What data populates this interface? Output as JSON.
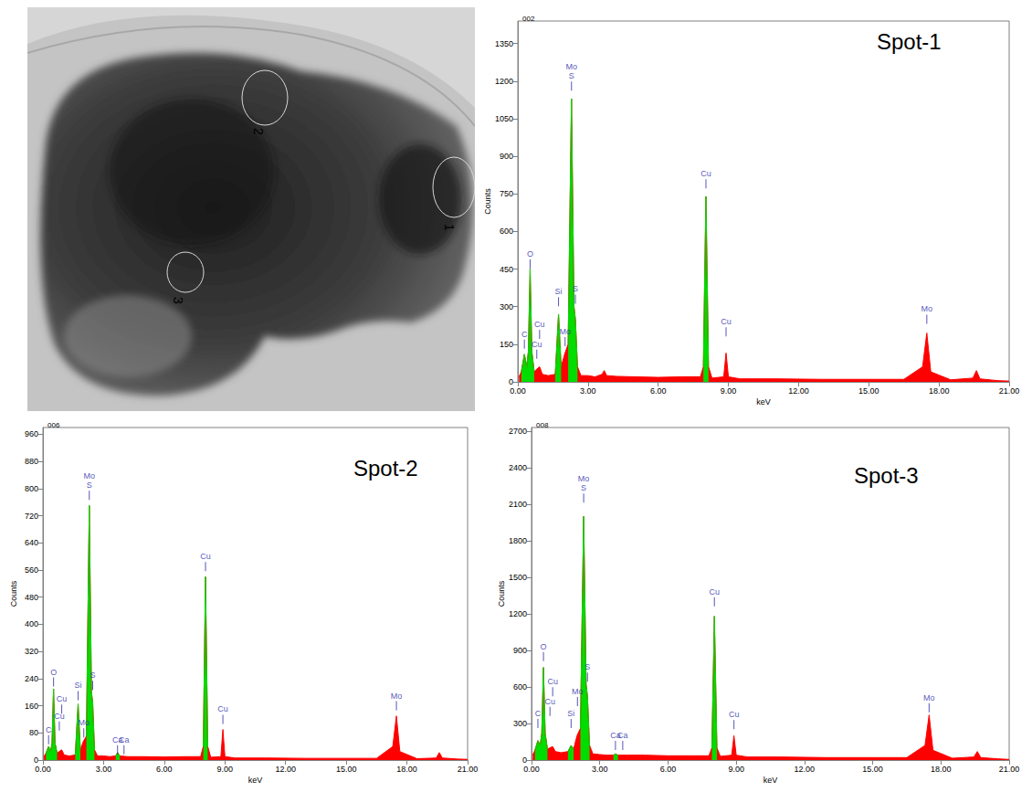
{
  "micrograph": {
    "spot_labels": [
      "1",
      "2",
      "3"
    ]
  },
  "chart_data": [
    {
      "type": "area",
      "title": "Spot-1",
      "subtitle": "002",
      "xlabel": "keV",
      "ylabel": "Counts",
      "grid": false,
      "x": [
        0.05,
        0.15,
        0.28,
        0.38,
        0.45,
        0.525,
        0.6,
        0.7,
        0.8,
        0.93,
        1.05,
        1.3,
        1.6,
        1.74,
        1.85,
        2.0,
        2.15,
        2.293,
        2.4,
        2.46,
        2.55,
        2.7,
        3.0,
        3.3,
        3.6,
        3.69,
        3.8,
        4.2,
        5.0,
        6.0,
        7.0,
        7.8,
        7.93,
        8.04,
        8.15,
        8.3,
        8.8,
        8.9,
        9.0,
        9.5,
        11.0,
        13.0,
        15.0,
        16.5,
        17.3,
        17.48,
        17.65,
        18.5,
        19.45,
        19.6,
        19.75,
        20.5,
        21.0
      ],
      "series": [
        {
          "color": "#ff0000",
          "values": [
            20,
            40,
            110,
            60,
            120,
            450,
            120,
            40,
            50,
            60,
            30,
            25,
            30,
            270,
            60,
            110,
            150,
            1130,
            300,
            250,
            60,
            25,
            25,
            20,
            30,
            45,
            25,
            22,
            20,
            18,
            20,
            20,
            60,
            740,
            60,
            15,
            20,
            115,
            20,
            12,
            12,
            10,
            10,
            10,
            60,
            195,
            40,
            8,
            15,
            45,
            12,
            5,
            3
          ]
        },
        {
          "color": "#00dd00",
          "values": [
            null,
            40,
            110,
            60,
            120,
            450,
            120,
            40,
            null,
            null,
            null,
            null,
            30,
            270,
            60,
            null,
            150,
            1130,
            300,
            250,
            60,
            null,
            null,
            null,
            null,
            null,
            null,
            null,
            null,
            null,
            null,
            null,
            60,
            740,
            60,
            null,
            null,
            null,
            null,
            null,
            null,
            null,
            null,
            null,
            null,
            null,
            null,
            null,
            null,
            null,
            null,
            null,
            null
          ]
        }
      ],
      "xlim": [
        0,
        21
      ],
      "xticks": [
        {
          "value": 0,
          "label": "0.00"
        },
        {
          "value": 3,
          "label": "3.00"
        },
        {
          "value": 6,
          "label": "6.00"
        },
        {
          "value": 9,
          "label": "9.00"
        },
        {
          "value": 12,
          "label": "12.00"
        },
        {
          "value": 15,
          "label": "15.00"
        },
        {
          "value": 18,
          "label": "18.00"
        },
        {
          "value": 21,
          "label": "21.00"
        }
      ],
      "ylim": [
        0,
        1440
      ],
      "yticks": [
        0,
        150,
        300,
        450,
        600,
        750,
        900,
        1050,
        1200,
        1350
      ],
      "annotations": [
        {
          "text": [
            "C"
          ],
          "x": 0.28,
          "y": 150
        },
        {
          "text": [
            "O"
          ],
          "x": 0.525,
          "y": 470
        },
        {
          "text": [
            "Cu"
          ],
          "x": 0.93,
          "y": 190
        },
        {
          "text": [
            "Cu"
          ],
          "x": 0.81,
          "y": 110
        },
        {
          "text": [
            "Si"
          ],
          "x": 1.74,
          "y": 320
        },
        {
          "text": [
            "Mo"
          ],
          "x": 2.02,
          "y": 160
        },
        {
          "text": [
            "Mo",
            "S"
          ],
          "x": 2.293,
          "y": 1180
        },
        {
          "text": [
            "S"
          ],
          "x": 2.46,
          "y": 330
        },
        {
          "text": [
            "Cu"
          ],
          "x": 8.04,
          "y": 790
        },
        {
          "text": [
            "Cu"
          ],
          "x": 8.9,
          "y": 200
        },
        {
          "text": [
            "Mo"
          ],
          "x": 17.48,
          "y": 250
        }
      ]
    },
    {
      "type": "area",
      "title": "Spot-2",
      "subtitle": "006",
      "xlabel": "keV",
      "ylabel": "Counts",
      "grid": false,
      "x": [
        0.05,
        0.15,
        0.28,
        0.38,
        0.45,
        0.525,
        0.6,
        0.7,
        0.8,
        0.93,
        1.05,
        1.3,
        1.6,
        1.74,
        1.85,
        2.0,
        2.15,
        2.293,
        2.4,
        2.46,
        2.55,
        2.7,
        3.0,
        3.3,
        3.6,
        3.69,
        3.8,
        4.2,
        5.0,
        6.0,
        7.0,
        7.8,
        7.93,
        8.04,
        8.15,
        8.3,
        8.8,
        8.9,
        9.0,
        9.5,
        11.0,
        13.0,
        15.0,
        16.5,
        17.3,
        17.48,
        17.65,
        18.5,
        19.45,
        19.6,
        19.75,
        20.5,
        21.0
      ],
      "series": [
        {
          "color": "#ff0000",
          "values": [
            10,
            20,
            40,
            25,
            50,
            210,
            50,
            20,
            25,
            30,
            15,
            12,
            15,
            165,
            30,
            55,
            70,
            750,
            200,
            170,
            30,
            12,
            12,
            10,
            12,
            22,
            12,
            10,
            10,
            9,
            10,
            10,
            40,
            540,
            40,
            8,
            10,
            90,
            10,
            6,
            6,
            5,
            5,
            5,
            40,
            130,
            25,
            4,
            6,
            22,
            6,
            3,
            2
          ]
        },
        {
          "color": "#00dd00",
          "values": [
            null,
            20,
            40,
            25,
            50,
            210,
            50,
            20,
            null,
            null,
            null,
            null,
            15,
            165,
            30,
            null,
            70,
            750,
            200,
            170,
            30,
            null,
            null,
            null,
            12,
            22,
            12,
            null,
            null,
            null,
            null,
            null,
            40,
            540,
            40,
            null,
            null,
            null,
            null,
            null,
            null,
            null,
            null,
            null,
            null,
            null,
            null,
            null,
            null,
            null,
            null,
            null,
            null
          ]
        }
      ],
      "xlim": [
        0,
        21
      ],
      "xticks": [
        {
          "value": 0,
          "label": "0.00"
        },
        {
          "value": 3,
          "label": "3.00"
        },
        {
          "value": 6,
          "label": "6.00"
        },
        {
          "value": 9,
          "label": "9.00"
        },
        {
          "value": 12,
          "label": "12.00"
        },
        {
          "value": 15,
          "label": "15.00"
        },
        {
          "value": 18,
          "label": "18.00"
        },
        {
          "value": 21,
          "label": "21.00"
        }
      ],
      "ylim": [
        0,
        980
      ],
      "yticks": [
        0,
        80,
        160,
        240,
        320,
        400,
        480,
        560,
        640,
        720,
        800,
        880,
        960
      ],
      "annotations": [
        {
          "text": [
            "C"
          ],
          "x": 0.28,
          "y": 60
        },
        {
          "text": [
            "O"
          ],
          "x": 0.525,
          "y": 230
        },
        {
          "text": [
            "Cu"
          ],
          "x": 0.93,
          "y": 150
        },
        {
          "text": [
            "Cu"
          ],
          "x": 0.81,
          "y": 100
        },
        {
          "text": [
            "Si"
          ],
          "x": 1.74,
          "y": 190
        },
        {
          "text": [
            "Mo"
          ],
          "x": 2.02,
          "y": 80
        },
        {
          "text": [
            "Mo",
            "S"
          ],
          "x": 2.293,
          "y": 780
        },
        {
          "text": [
            "S"
          ],
          "x": 2.46,
          "y": 220
        },
        {
          "text": [
            "Ca"
          ],
          "x": 3.69,
          "y": 30
        },
        {
          "text": [
            "Ca"
          ],
          "x": 4.01,
          "y": 30
        },
        {
          "text": [
            "Cu"
          ],
          "x": 8.04,
          "y": 570
        },
        {
          "text": [
            "Cu"
          ],
          "x": 8.9,
          "y": 120
        },
        {
          "text": [
            "Mo"
          ],
          "x": 17.48,
          "y": 160
        }
      ]
    },
    {
      "type": "area",
      "title": "Spot-3",
      "subtitle": "008",
      "xlabel": "keV",
      "ylabel": "Counts",
      "grid": false,
      "x": [
        0.05,
        0.15,
        0.28,
        0.38,
        0.45,
        0.525,
        0.6,
        0.7,
        0.8,
        0.93,
        1.05,
        1.3,
        1.6,
        1.74,
        1.85,
        2.0,
        2.15,
        2.293,
        2.4,
        2.46,
        2.55,
        2.7,
        3.0,
        3.3,
        3.6,
        3.69,
        3.8,
        4.2,
        5.0,
        6.0,
        7.0,
        7.8,
        7.93,
        8.04,
        8.15,
        8.3,
        8.8,
        8.9,
        9.0,
        9.5,
        11.0,
        13.0,
        15.0,
        16.5,
        17.3,
        17.48,
        17.65,
        18.5,
        19.45,
        19.6,
        19.75,
        20.5,
        21.0
      ],
      "series": [
        {
          "color": "#ff0000",
          "values": [
            40,
            80,
            160,
            120,
            220,
            760,
            220,
            90,
            100,
            110,
            70,
            60,
            70,
            120,
            90,
            200,
            260,
            2000,
            620,
            520,
            120,
            50,
            45,
            40,
            40,
            50,
            40,
            40,
            40,
            35,
            35,
            35,
            100,
            1180,
            100,
            30,
            40,
            200,
            40,
            25,
            25,
            20,
            20,
            20,
            120,
            370,
            80,
            15,
            25,
            70,
            20,
            10,
            5
          ]
        },
        {
          "color": "#00dd00",
          "values": [
            null,
            80,
            160,
            120,
            220,
            760,
            220,
            90,
            null,
            null,
            null,
            null,
            70,
            120,
            90,
            null,
            260,
            2000,
            620,
            520,
            120,
            null,
            null,
            null,
            40,
            50,
            40,
            null,
            null,
            null,
            null,
            null,
            100,
            1180,
            100,
            null,
            null,
            null,
            null,
            null,
            null,
            null,
            null,
            null,
            null,
            null,
            null,
            null,
            null,
            null,
            null,
            null,
            null
          ]
        }
      ],
      "xlim": [
        0,
        21
      ],
      "xticks": [
        {
          "value": 0,
          "label": "0.00"
        },
        {
          "value": 3,
          "label": "3.00"
        },
        {
          "value": 6,
          "label": "6.00"
        },
        {
          "value": 9,
          "label": "9.00"
        },
        {
          "value": 12,
          "label": "12.00"
        },
        {
          "value": 15,
          "label": "15.00"
        },
        {
          "value": 18,
          "label": "18.00"
        },
        {
          "value": 21,
          "label": "21.00"
        }
      ],
      "ylim": [
        0,
        2730
      ],
      "yticks": [
        0,
        300,
        600,
        900,
        1200,
        1500,
        1800,
        2100,
        2400,
        2700
      ],
      "annotations": [
        {
          "text": [
            "C"
          ],
          "x": 0.28,
          "y": 300
        },
        {
          "text": [
            "O"
          ],
          "x": 0.525,
          "y": 850
        },
        {
          "text": [
            "Cu"
          ],
          "x": 0.93,
          "y": 560
        },
        {
          "text": [
            "Cu"
          ],
          "x": 0.81,
          "y": 400
        },
        {
          "text": [
            "Si"
          ],
          "x": 1.74,
          "y": 300
        },
        {
          "text": [
            "Mo"
          ],
          "x": 2.02,
          "y": 480
        },
        {
          "text": [
            "Mo",
            "S"
          ],
          "x": 2.293,
          "y": 2150
        },
        {
          "text": [
            "S"
          ],
          "x": 2.46,
          "y": 680
        },
        {
          "text": [
            "Ca"
          ],
          "x": 3.69,
          "y": 120
        },
        {
          "text": [
            "Ca"
          ],
          "x": 4.01,
          "y": 120
        },
        {
          "text": [
            "Cu"
          ],
          "x": 8.04,
          "y": 1300
        },
        {
          "text": [
            "Cu"
          ],
          "x": 8.9,
          "y": 290
        },
        {
          "text": [
            "Mo"
          ],
          "x": 17.48,
          "y": 430
        }
      ]
    }
  ]
}
